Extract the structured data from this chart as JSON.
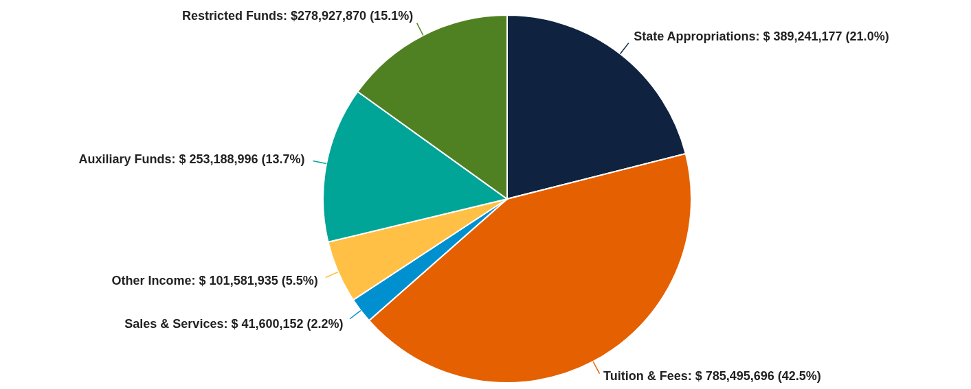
{
  "chart_data": {
    "type": "pie",
    "categories": [
      "State Appropriations",
      "Tuition & Fees",
      "Sales & Services",
      "Other Income",
      "Auxiliary Funds",
      "Restricted Funds"
    ],
    "values": [
      389241177,
      785495696,
      41600152,
      101581935,
      253188996,
      278927870
    ],
    "value_labels": [
      "$ 389,241,177 (21.0%)",
      "$ 785,495,696 (42.5%)",
      "$ 41,600,152 (2.2%)",
      "$ 101,581,935 (5.5%)",
      "$ 253,188,996 (13.7%)",
      "$278,927,870 (15.1%)"
    ],
    "colors": [
      "#0f2341",
      "#e56000",
      "#0090d0",
      "#ffc045",
      "#00a598",
      "#4f8122"
    ]
  }
}
